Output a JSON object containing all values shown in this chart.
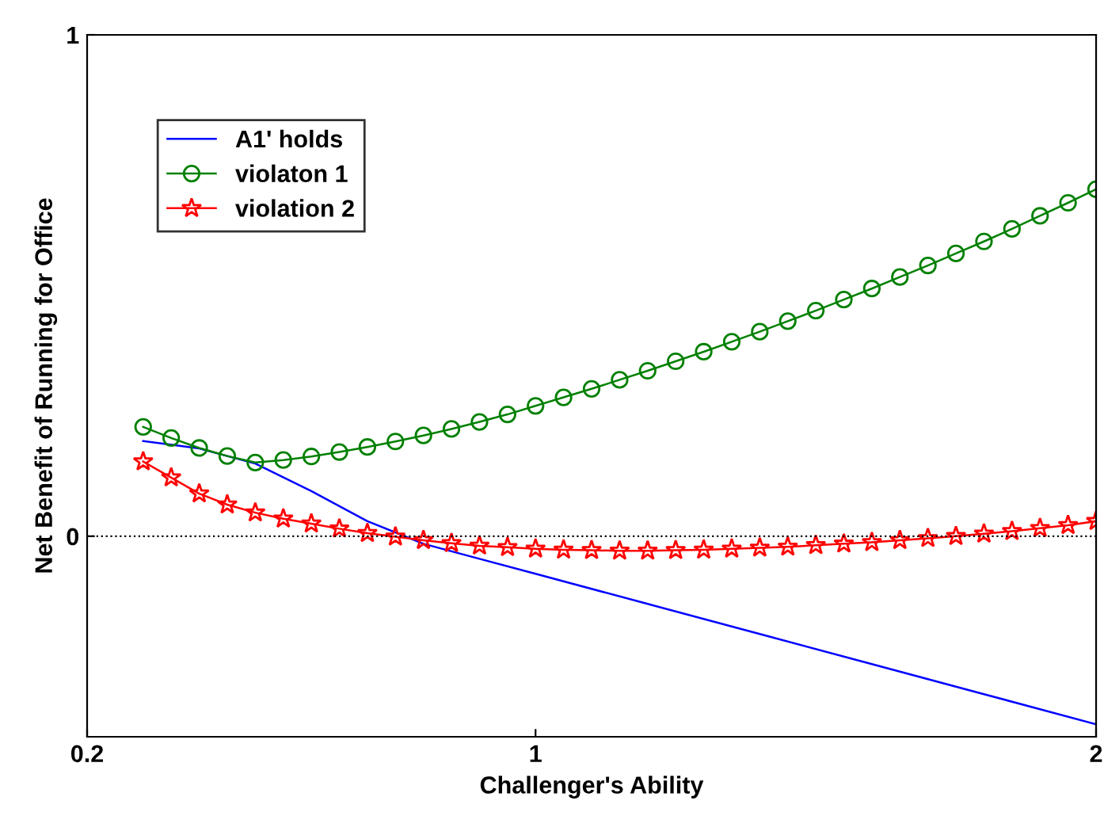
{
  "chart_data": {
    "type": "line",
    "xlabel": "Challenger's Ability",
    "ylabel": "Net Benefit of Running for Office",
    "xlim": [
      0.2,
      2
    ],
    "xticks": [
      0.2,
      1,
      2
    ],
    "ylim": [
      -0.4,
      1
    ],
    "yticks": [
      0,
      1
    ],
    "grid": false,
    "legend": "top left",
    "x": [
      0.3,
      0.35,
      0.4,
      0.45,
      0.5,
      0.55,
      0.6,
      0.65,
      0.7,
      0.75,
      0.8,
      0.85,
      0.9,
      0.95,
      1.0,
      1.05,
      1.1,
      1.15,
      1.2,
      1.25,
      1.3,
      1.35,
      1.4,
      1.45,
      1.5,
      1.55,
      1.6,
      1.65,
      1.7,
      1.75,
      1.8,
      1.85,
      1.9,
      1.95,
      2.0
    ],
    "ref_lines": [
      {
        "axis": "y",
        "value": 0,
        "color": "#000000",
        "line_style": "dotted"
      }
    ],
    "series": [
      {
        "name": "A1' holds",
        "color": "#0000ff",
        "marker": "none",
        "x": [
          0.3,
          0.4,
          0.5,
          0.6,
          0.7,
          0.8,
          0.9,
          1.0,
          1.2,
          1.4,
          1.6,
          1.8,
          2.0
        ],
        "values": [
          0.19,
          0.175,
          0.145,
          0.09,
          0.03,
          -0.015,
          -0.045,
          -0.075,
          -0.135,
          -0.195,
          -0.255,
          -0.315,
          -0.375
        ]
      },
      {
        "name": "violaton 1",
        "color": "#008000",
        "marker": "circle",
        "values": [
          0.218,
          0.196,
          0.176,
          0.16,
          0.147,
          0.152,
          0.159,
          0.168,
          0.178,
          0.189,
          0.201,
          0.214,
          0.228,
          0.243,
          0.26,
          0.277,
          0.294,
          0.312,
          0.33,
          0.349,
          0.368,
          0.388,
          0.408,
          0.429,
          0.45,
          0.472,
          0.494,
          0.517,
          0.54,
          0.564,
          0.588,
          0.613,
          0.639,
          0.665,
          0.692
        ]
      },
      {
        "name": "violation 2",
        "color": "#ff0000",
        "marker": "star",
        "values": [
          0.149,
          0.117,
          0.085,
          0.063,
          0.047,
          0.035,
          0.025,
          0.015,
          0.006,
          -0.001,
          -0.008,
          -0.014,
          -0.019,
          -0.022,
          -0.025,
          -0.027,
          -0.028,
          -0.029,
          -0.029,
          -0.028,
          -0.027,
          -0.025,
          -0.023,
          -0.021,
          -0.018,
          -0.015,
          -0.012,
          -0.008,
          -0.004,
          0.0,
          0.005,
          0.01,
          0.016,
          0.022,
          0.03
        ]
      }
    ]
  }
}
